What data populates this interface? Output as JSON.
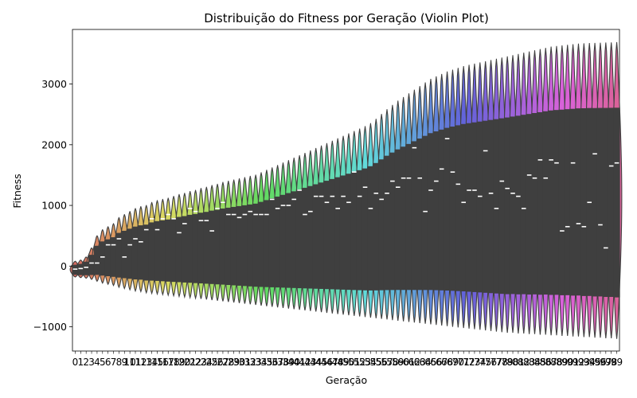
{
  "chart_data": {
    "type": "violin",
    "title": "Distribuição do Fitness por Geração (Violin Plot)",
    "xlabel": "Geração",
    "ylabel": "Fitness",
    "ylim": [
      -1400,
      3900
    ],
    "yticks": [
      -1000,
      0,
      1000,
      2000,
      3000
    ],
    "ytick_labels": [
      "−1000",
      "0",
      "1000",
      "2000",
      "3000"
    ],
    "categories": [
      "0",
      "1",
      "2",
      "3",
      "4",
      "5",
      "6",
      "7",
      "8",
      "9",
      "10",
      "11",
      "12",
      "13",
      "14",
      "15",
      "16",
      "17",
      "18",
      "19",
      "20",
      "21",
      "22",
      "23",
      "24",
      "25",
      "26",
      "27",
      "28",
      "29",
      "30",
      "31",
      "32",
      "33",
      "34",
      "35",
      "36",
      "37",
      "38",
      "39",
      "40",
      "41",
      "42",
      "43",
      "44",
      "45",
      "46",
      "47",
      "48",
      "49",
      "50",
      "51",
      "52",
      "53",
      "54",
      "55",
      "56",
      "57",
      "58",
      "59",
      "60",
      "61",
      "62",
      "63",
      "64",
      "65",
      "66",
      "67",
      "68",
      "69",
      "70",
      "71",
      "72",
      "73",
      "74",
      "75",
      "76",
      "77",
      "78",
      "79",
      "80",
      "81",
      "82",
      "83",
      "84",
      "85",
      "86",
      "87",
      "88",
      "89",
      "90",
      "91",
      "92",
      "93",
      "94",
      "95",
      "96",
      "97",
      "98",
      "99"
    ],
    "min_values": [
      -180,
      -190,
      -200,
      -220,
      -250,
      -280,
      -300,
      -320,
      -350,
      -370,
      -390,
      -410,
      -420,
      -440,
      -450,
      -460,
      -470,
      -480,
      -490,
      -500,
      -510,
      -520,
      -530,
      -540,
      -550,
      -560,
      -570,
      -580,
      -590,
      -600,
      -610,
      -620,
      -630,
      -640,
      -650,
      -660,
      -670,
      -680,
      -690,
      -700,
      -710,
      -720,
      -730,
      -740,
      -750,
      -760,
      -770,
      -780,
      -790,
      -800,
      -810,
      -820,
      -830,
      -840,
      -850,
      -860,
      -870,
      -880,
      -890,
      -900,
      -910,
      -920,
      -930,
      -940,
      -950,
      -960,
      -970,
      -980,
      -990,
      -1000,
      -1010,
      -1020,
      -1030,
      -1040,
      -1050,
      -1060,
      -1070,
      -1080,
      -1090,
      -1100,
      -1100,
      -1110,
      -1110,
      -1120,
      -1120,
      -1130,
      -1130,
      -1140,
      -1140,
      -1150,
      -1150,
      -1160,
      -1160,
      -1170,
      -1170,
      -1180,
      -1180,
      -1190,
      -1190,
      -1200
    ],
    "max_values": [
      80,
      100,
      150,
      300,
      500,
      600,
      650,
      700,
      800,
      850,
      900,
      950,
      980,
      1000,
      1050,
      1080,
      1100,
      1120,
      1150,
      1180,
      1200,
      1230,
      1250,
      1280,
      1300,
      1330,
      1350,
      1380,
      1400,
      1420,
      1440,
      1460,
      1480,
      1500,
      1540,
      1580,
      1620,
      1660,
      1700,
      1740,
      1780,
      1820,
      1860,
      1900,
      1940,
      1980,
      2020,
      2060,
      2100,
      2140,
      2180,
      2220,
      2260,
      2300,
      2350,
      2420,
      2500,
      2580,
      2650,
      2720,
      2780,
      2840,
      2900,
      2960,
      3020,
      3080,
      3120,
      3160,
      3200,
      3230,
      3260,
      3290,
      3310,
      3330,
      3350,
      3370,
      3390,
      3410,
      3430,
      3450,
      3470,
      3490,
      3510,
      3530,
      3550,
      3570,
      3590,
      3610,
      3620,
      3630,
      3640,
      3650,
      3660,
      3665,
      3670,
      3672,
      3675,
      3678,
      3680,
      3685
    ],
    "median_values": [
      -50,
      -40,
      -20,
      50,
      50,
      150,
      350,
      350,
      450,
      150,
      350,
      450,
      400,
      600,
      780,
      600,
      780,
      850,
      780,
      550,
      700,
      950,
      900,
      750,
      750,
      580,
      950,
      1050,
      850,
      850,
      800,
      850,
      900,
      850,
      850,
      850,
      1100,
      950,
      1000,
      1000,
      1100,
      1250,
      850,
      900,
      1150,
      1150,
      1050,
      1150,
      950,
      1150,
      1050,
      1550,
      1150,
      1300,
      950,
      1200,
      1100,
      1200,
      1400,
      1300,
      1450,
      1450,
      1950,
      1450,
      900,
      1250,
      1400,
      1600,
      2100,
      1550,
      1350,
      1050,
      1250,
      1250,
      1150,
      1900,
      1200,
      950,
      1400,
      1280,
      1200,
      1150,
      950,
      1500,
      1450,
      1750,
      1450,
      1750,
      1700,
      580,
      650,
      1700,
      700,
      650,
      1050,
      1850,
      680,
      300,
      1650,
      1700
    ]
  }
}
